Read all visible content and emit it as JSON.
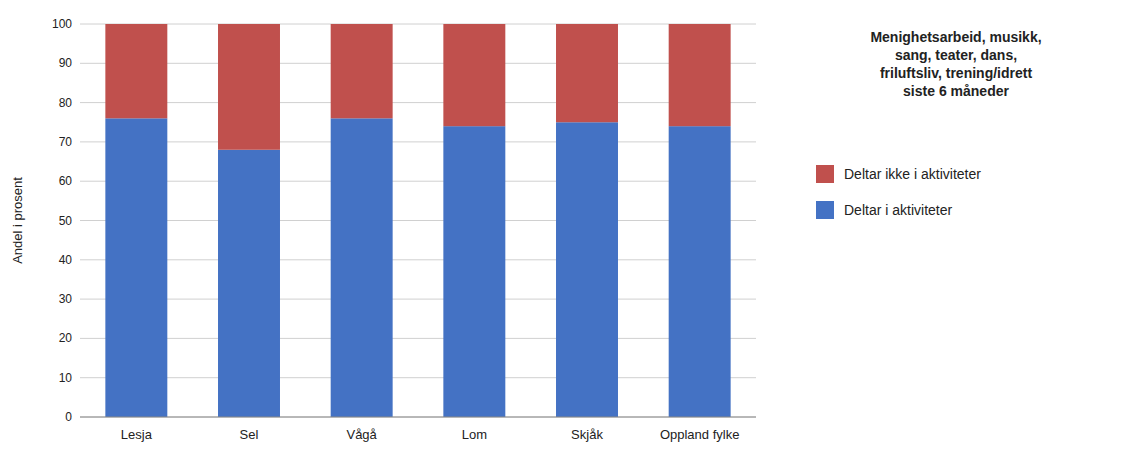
{
  "chart_data": {
    "type": "bar",
    "stacked": true,
    "categories": [
      "Lesja",
      "Sel",
      "Vågå",
      "Lom",
      "Skjåk",
      "Oppland fylke"
    ],
    "series": [
      {
        "name": "Deltar i aktiviteter",
        "color": "#4472C4",
        "values": [
          76,
          68,
          76,
          74,
          75,
          74
        ]
      },
      {
        "name": "Deltar ikke i aktiviteter",
        "color": "#C0504D",
        "values": [
          24,
          32,
          24,
          26,
          25,
          26
        ]
      }
    ],
    "ylabel": "Andel i prosent",
    "ylim": [
      0,
      100
    ],
    "yticks": [
      0,
      10,
      20,
      30,
      40,
      50,
      60,
      70,
      80,
      90,
      100
    ],
    "grid": true,
    "legend": "right",
    "legend_title": [
      "Menighetsarbeid, musikk,",
      "sang, teater, dans,",
      "friluftsliv, trening/idrett",
      "siste 6 måneder"
    ]
  }
}
